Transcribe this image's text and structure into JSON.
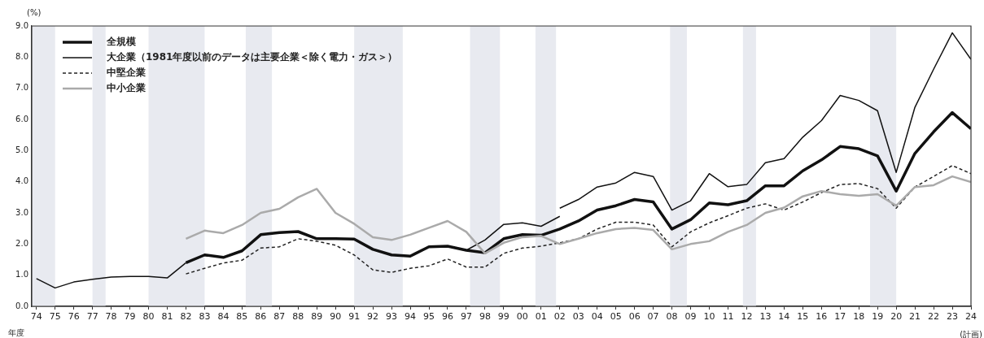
{
  "chart_data": {
    "type": "line",
    "ylabel": "(%)",
    "xlabel": "年度",
    "annotations": [
      "(計画)"
    ],
    "x": [
      1974,
      1975,
      1976,
      1977,
      1978,
      1979,
      1980,
      1981,
      1982,
      1983,
      1984,
      1985,
      1986,
      1987,
      1988,
      1989,
      1990,
      1991,
      1992,
      1993,
      1994,
      1995,
      1996,
      1997,
      1998,
      1999,
      2000,
      2001,
      2002,
      2003,
      2004,
      2005,
      2006,
      2007,
      2008,
      2009,
      2010,
      2011,
      2012,
      2013,
      2014,
      2015,
      2016,
      2017,
      2018,
      2019,
      2020,
      2021,
      2022,
      2023,
      2024
    ],
    "xlim": [
      1973.75,
      2024
    ],
    "xticks": [
      {
        "value": 1974,
        "label": "74"
      },
      {
        "value": 1975,
        "label": "75"
      },
      {
        "value": 1976,
        "label": "76"
      },
      {
        "value": 1977,
        "label": "77"
      },
      {
        "value": 1978,
        "label": "78"
      },
      {
        "value": 1979,
        "label": "79"
      },
      {
        "value": 1980,
        "label": "80"
      },
      {
        "value": 1981,
        "label": "81"
      },
      {
        "value": 1982,
        "label": "82"
      },
      {
        "value": 1983,
        "label": "83"
      },
      {
        "value": 1984,
        "label": "84"
      },
      {
        "value": 1985,
        "label": "85"
      },
      {
        "value": 1986,
        "label": "86"
      },
      {
        "value": 1987,
        "label": "87"
      },
      {
        "value": 1988,
        "label": "88"
      },
      {
        "value": 1989,
        "label": "89"
      },
      {
        "value": 1990,
        "label": "90"
      },
      {
        "value": 1991,
        "label": "91"
      },
      {
        "value": 1992,
        "label": "92"
      },
      {
        "value": 1993,
        "label": "93"
      },
      {
        "value": 1994,
        "label": "94"
      },
      {
        "value": 1995,
        "label": "95"
      },
      {
        "value": 1996,
        "label": "96"
      },
      {
        "value": 1997,
        "label": "97"
      },
      {
        "value": 1998,
        "label": "98"
      },
      {
        "value": 1999,
        "label": "99"
      },
      {
        "value": 2000,
        "label": "00"
      },
      {
        "value": 2001,
        "label": "01"
      },
      {
        "value": 2002,
        "label": "02"
      },
      {
        "value": 2003,
        "label": "03"
      },
      {
        "value": 2004,
        "label": "04"
      },
      {
        "value": 2005,
        "label": "05"
      },
      {
        "value": 2006,
        "label": "06"
      },
      {
        "value": 2007,
        "label": "07"
      },
      {
        "value": 2008,
        "label": "08"
      },
      {
        "value": 2009,
        "label": "09"
      },
      {
        "value": 2010,
        "label": "10"
      },
      {
        "value": 2011,
        "label": "11"
      },
      {
        "value": 2012,
        "label": "12"
      },
      {
        "value": 2013,
        "label": "13"
      },
      {
        "value": 2014,
        "label": "14"
      },
      {
        "value": 2015,
        "label": "15"
      },
      {
        "value": 2016,
        "label": "16"
      },
      {
        "value": 2017,
        "label": "17"
      },
      {
        "value": 2018,
        "label": "18"
      },
      {
        "value": 2019,
        "label": "19"
      },
      {
        "value": 2020,
        "label": "20"
      },
      {
        "value": 2021,
        "label": "21"
      },
      {
        "value": 2022,
        "label": "22"
      },
      {
        "value": 2023,
        "label": "23"
      },
      {
        "value": 2024,
        "label": "24"
      }
    ],
    "ylim": [
      0,
      9
    ],
    "yticks": [
      {
        "value": 0,
        "label": "0.0"
      },
      {
        "value": 1,
        "label": "1.0"
      },
      {
        "value": 2,
        "label": "2.0"
      },
      {
        "value": 3,
        "label": "3.0"
      },
      {
        "value": 4,
        "label": "4.0"
      },
      {
        "value": 5,
        "label": "5.0"
      },
      {
        "value": 6,
        "label": "6.0"
      },
      {
        "value": 7,
        "label": "7.0"
      },
      {
        "value": 8,
        "label": "8.0"
      },
      {
        "value": 9,
        "label": "9.0"
      }
    ],
    "grid": false,
    "legend": "top left",
    "marker": "none",
    "bands": [
      {
        "axis": "x",
        "from": 1973.75,
        "to": 1975,
        "color": "#e8eaf0"
      },
      {
        "axis": "x",
        "from": 1977,
        "to": 1977.7,
        "color": "#e8eaf0"
      },
      {
        "axis": "x",
        "from": 1980,
        "to": 1983,
        "color": "#e8eaf0"
      },
      {
        "axis": "x",
        "from": 1985.2,
        "to": 1986.6,
        "color": "#e8eaf0"
      },
      {
        "axis": "x",
        "from": 1991,
        "to": 1993.6,
        "color": "#e8eaf0"
      },
      {
        "axis": "x",
        "from": 1997.2,
        "to": 1998.8,
        "color": "#e8eaf0"
      },
      {
        "axis": "x",
        "from": 2000.7,
        "to": 2001.8,
        "color": "#e8eaf0"
      },
      {
        "axis": "x",
        "from": 2007.9,
        "to": 2008.8,
        "color": "#e8eaf0"
      },
      {
        "axis": "x",
        "from": 2011.8,
        "to": 2012.5,
        "color": "#e8eaf0"
      },
      {
        "axis": "x",
        "from": 2018.6,
        "to": 2020,
        "color": "#e8eaf0"
      }
    ],
    "series": [
      {
        "name": "全規模",
        "color": "#111111",
        "line_style": "solid",
        "values": [
          null,
          null,
          null,
          null,
          null,
          null,
          null,
          null,
          1.4,
          1.65,
          1.57,
          1.78,
          2.3,
          2.37,
          2.4,
          2.17,
          2.17,
          2.16,
          1.83,
          1.65,
          1.61,
          1.91,
          1.93,
          1.8,
          1.72,
          2.17,
          2.3,
          2.28,
          2.48,
          2.74,
          3.09,
          3.23,
          3.43,
          3.35,
          2.48,
          2.78,
          3.32,
          3.26,
          3.39,
          3.87,
          3.87,
          4.35,
          4.7,
          5.13,
          5.06,
          4.83,
          3.7,
          4.91,
          5.6,
          6.22,
          5.7
        ]
      },
      {
        "name": "大企業（1981年度以前のデータは主要企業＜除く電力・ガス＞）",
        "color": "#111111",
        "line_style": "solid",
        "values": [
          0.89,
          0.59,
          0.78,
          0.87,
          0.94,
          0.96,
          0.96,
          0.91,
          1.4,
          null,
          null,
          null,
          null,
          null,
          null,
          null,
          null,
          null,
          null,
          null,
          null,
          null,
          null,
          1.8,
          2.13,
          2.63,
          2.68,
          2.57,
          2.89,
          null,
          null,
          null,
          null,
          null,
          null,
          null,
          null,
          null,
          null,
          null,
          null,
          null,
          null,
          null,
          null,
          null,
          null,
          null,
          null,
          null,
          null
        ]
      },
      {
        "color": "#111111",
        "line_style": "solid",
        "values": [
          null,
          null,
          null,
          null,
          null,
          null,
          null,
          null,
          null,
          null,
          null,
          null,
          null,
          null,
          null,
          null,
          null,
          null,
          null,
          null,
          null,
          null,
          null,
          null,
          null,
          null,
          null,
          null,
          3.15,
          3.43,
          3.83,
          3.96,
          4.3,
          4.17,
          3.09,
          3.39,
          4.26,
          3.84,
          3.91,
          4.61,
          4.74,
          5.43,
          5.96,
          6.77,
          6.61,
          6.28,
          4.3,
          6.39,
          7.61,
          8.78,
          7.93
        ]
      },
      {
        "name": "中堅企業",
        "color": "#222222",
        "line_style": "dashed",
        "values": [
          null,
          null,
          null,
          null,
          null,
          null,
          null,
          null,
          1.04,
          1.22,
          1.39,
          1.48,
          1.87,
          1.91,
          2.17,
          2.09,
          1.96,
          1.65,
          1.17,
          1.09,
          1.22,
          1.3,
          1.52,
          1.26,
          1.26,
          1.7,
          1.87,
          1.93,
          2.04,
          2.17,
          2.48,
          2.7,
          2.7,
          2.61,
          1.91,
          2.39,
          2.68,
          2.91,
          3.15,
          3.29,
          3.09,
          3.35,
          3.65,
          3.91,
          3.94,
          3.78,
          3.15,
          3.83,
          4.17,
          4.52,
          4.26
        ]
      },
      {
        "name": "中小企業",
        "color": "#aaaaaa",
        "line_style": "solid",
        "values": [
          null,
          null,
          null,
          null,
          null,
          null,
          null,
          null,
          2.17,
          2.43,
          2.35,
          2.61,
          3.0,
          3.13,
          3.5,
          3.77,
          3.0,
          2.65,
          2.22,
          2.13,
          2.3,
          2.52,
          2.74,
          2.39,
          1.7,
          2.04,
          2.22,
          2.26,
          2.0,
          2.17,
          2.35,
          2.48,
          2.52,
          2.45,
          1.83,
          2.0,
          2.09,
          2.39,
          2.61,
          3.0,
          3.17,
          3.53,
          3.7,
          3.6,
          3.55,
          3.6,
          3.23,
          3.83,
          3.89,
          4.17,
          3.99
        ]
      }
    ]
  }
}
